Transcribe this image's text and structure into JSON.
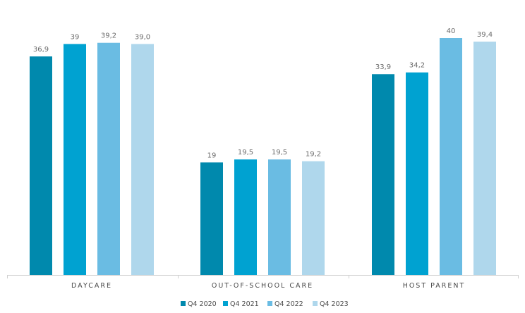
{
  "chart_data": {
    "type": "bar",
    "categories": [
      "DAYCARE",
      "OUT-OF-SCHOOL CARE",
      "HOST PARENT"
    ],
    "series": [
      {
        "name": "Q4 2020",
        "color": "#0089ad",
        "values": [
          36.9,
          19,
          33.9
        ],
        "labels": [
          "36,9",
          "19",
          "33,9"
        ]
      },
      {
        "name": "Q4 2021",
        "color": "#00a2d1",
        "values": [
          39,
          19.5,
          34.2
        ],
        "labels": [
          "39",
          "19,5",
          "34,2"
        ]
      },
      {
        "name": "Q4 2022",
        "color": "#6abce3",
        "values": [
          39.2,
          19.5,
          40
        ],
        "labels": [
          "39,2",
          "19,5",
          "40"
        ]
      },
      {
        "name": "Q4 2023",
        "color": "#afd7ec",
        "values": [
          39.0,
          19.2,
          39.4
        ],
        "labels": [
          "39,0",
          "19,2",
          "39,4"
        ]
      }
    ],
    "title": "",
    "xlabel": "",
    "ylabel": "",
    "ylim": [
      0,
      40
    ],
    "grid": false,
    "legend": "bottom-center"
  }
}
